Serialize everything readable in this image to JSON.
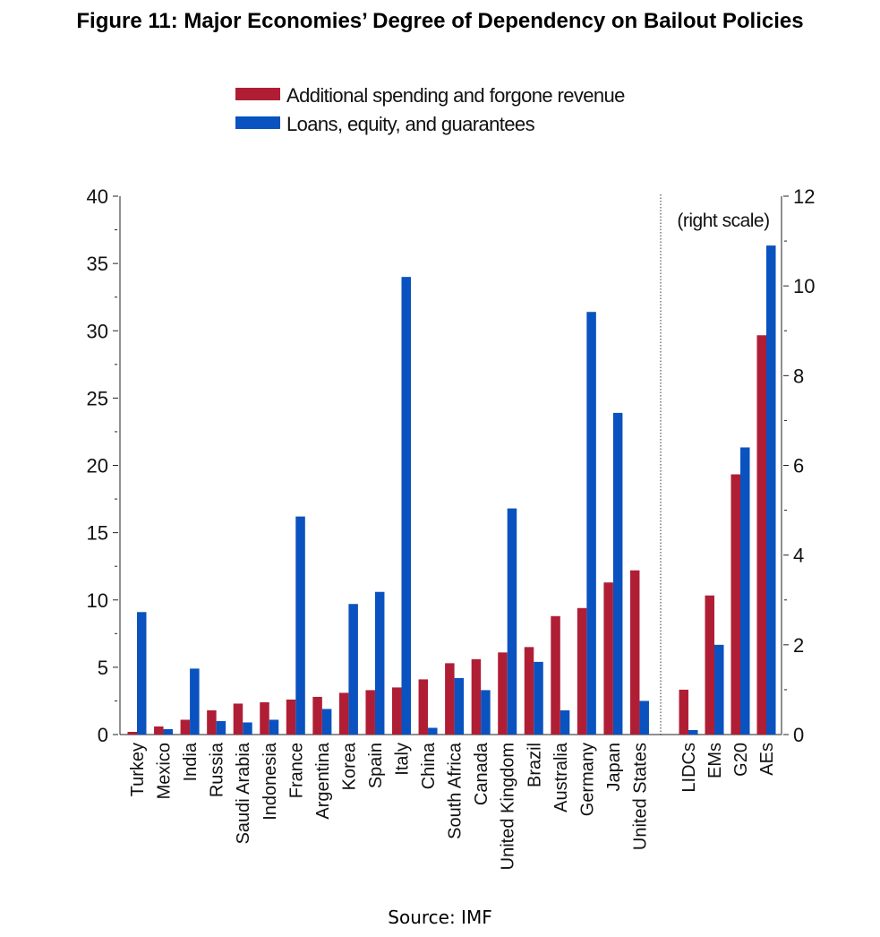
{
  "figure": {
    "title": "Figure 11: Major Economies’ Degree of Dependency on Bailout Policies",
    "source": "Source: IMF"
  },
  "chart_data": {
    "type": "bar",
    "legend_position": "top-center",
    "grid": false,
    "series": [
      {
        "name": "Additional spending and forgone revenue",
        "color": "#b01e35"
      },
      {
        "name": "Loans, equity, and guarantees",
        "color": "#0a52bf"
      }
    ],
    "left_axis": {
      "ylim": [
        0,
        40
      ],
      "ticks": [
        "0",
        "5",
        "10",
        "15",
        "20",
        "25",
        "30",
        "35",
        "40"
      ]
    },
    "right_axis": {
      "ylim": [
        0,
        12
      ],
      "ticks": [
        "0",
        "2",
        "4",
        "6",
        "8",
        "10",
        "12"
      ],
      "note": "(right scale)"
    },
    "left_panel": {
      "categories": [
        "Turkey",
        "Mexico",
        "India",
        "Russia",
        "Saudi Arabia",
        "Indonesia",
        "France",
        "Argentina",
        "Korea",
        "Spain",
        "Italy",
        "China",
        "South Africa",
        "Canada",
        "United Kingdom",
        "Brazil",
        "Australia",
        "Germany",
        "Japan",
        "United States"
      ],
      "values": [
        [
          0.2,
          0.6,
          1.1,
          1.8,
          2.3,
          2.4,
          2.6,
          2.8,
          3.1,
          3.3,
          3.5,
          4.1,
          5.3,
          5.6,
          6.1,
          6.5,
          8.8,
          9.4,
          11.3,
          12.2
        ],
        [
          9.1,
          0.4,
          4.9,
          1.0,
          0.9,
          1.1,
          16.2,
          1.9,
          9.7,
          10.6,
          34.0,
          0.5,
          4.2,
          3.3,
          16.8,
          5.4,
          1.8,
          31.4,
          23.9,
          2.5
        ]
      ]
    },
    "right_panel": {
      "categories": [
        "LIDCs",
        "EMs",
        "G20",
        "AEs"
      ],
      "values": [
        [
          1.0,
          3.1,
          5.8,
          8.9
        ],
        [
          0.1,
          2.0,
          6.4,
          10.9
        ]
      ]
    }
  }
}
